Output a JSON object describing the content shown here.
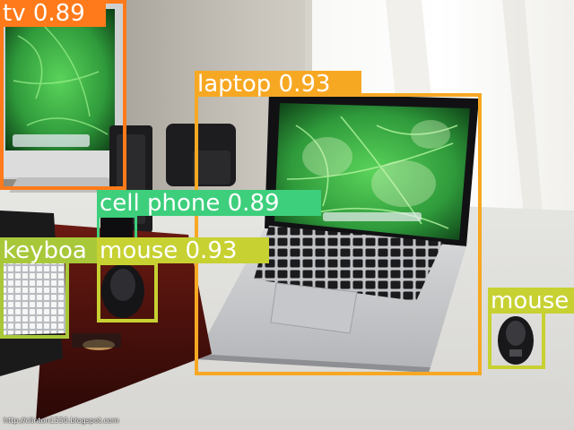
{
  "image": {
    "description_hidden": false,
    "watermark": "http://clinton1550.blogspot.com"
  },
  "detections": [
    {
      "id": "tv",
      "label": "tv 0.89",
      "class": "tv",
      "score": 0.89,
      "color": "#ff7a1a"
    },
    {
      "id": "laptop",
      "label": "laptop 0.93",
      "class": "laptop",
      "score": 0.93,
      "color": "#f7a823"
    },
    {
      "id": "cell-phone",
      "label": "cell phone 0.89",
      "class": "cell phone",
      "score": 0.89,
      "color": "#3ecf7c"
    },
    {
      "id": "keyboard",
      "label": "keyboa",
      "class": "keyboard",
      "color": "#a8c83a"
    },
    {
      "id": "mouse-left",
      "label": "mouse 0.93",
      "class": "mouse",
      "score": 0.93,
      "color": "#c7d132"
    },
    {
      "id": "mouse-right",
      "label": "mouse",
      "class": "mouse",
      "color": "#c7d132"
    }
  ]
}
